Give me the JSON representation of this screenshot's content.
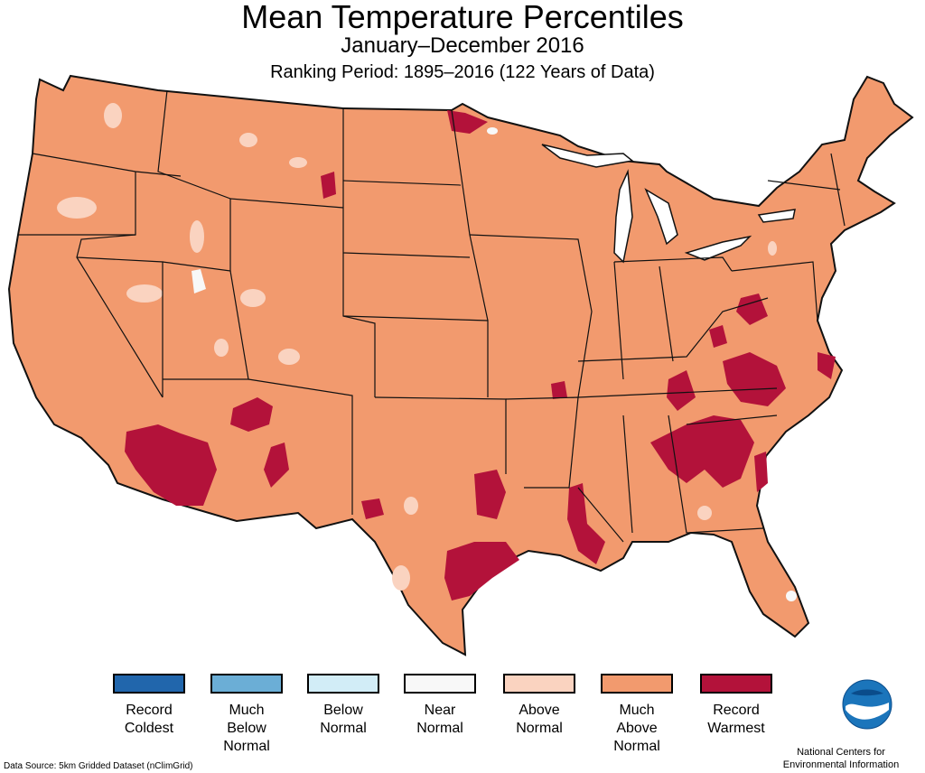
{
  "header": {
    "title": "Mean Temperature Percentiles",
    "subtitle": "January–December 2016",
    "period": "Ranking Period: 1895–2016 (122 Years of Data)"
  },
  "map": {
    "fill_color": "#F29A6E",
    "border_color": "#111111",
    "record_color": "#B3123A",
    "above_color": "#FAD3C0"
  },
  "legend": {
    "items": [
      {
        "label": "Record\nColdest",
        "color": "#2166AC"
      },
      {
        "label": "Much\nBelow\nNormal",
        "color": "#6BAED6"
      },
      {
        "label": "Below\nNormal",
        "color": "#D2EDF7"
      },
      {
        "label": "Near\nNormal",
        "color": "#F8F8F8"
      },
      {
        "label": "Above\nNormal",
        "color": "#FAD3C0"
      },
      {
        "label": "Much\nAbove\nNormal",
        "color": "#F29A6E"
      },
      {
        "label": "Record\nWarmest",
        "color": "#B3123A"
      }
    ]
  },
  "footer": {
    "source": "Data Source: 5km Gridded Dataset (nClimGrid)",
    "org": "National Centers for\nEnvironmental Information",
    "logo_icon": "noaa-logo-icon"
  }
}
